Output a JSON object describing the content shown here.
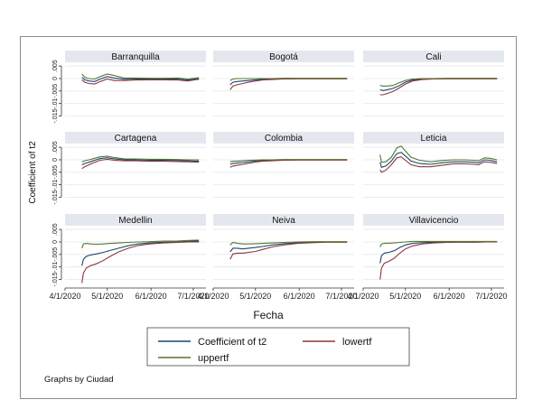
{
  "chart_data": {
    "type": "line",
    "ylabel": "Coefficient of t2",
    "xlabel": "Fecha",
    "yticks": [
      "-.015",
      "-.01",
      "-.005",
      "0",
      ".005"
    ],
    "xticks": [
      "4/1/2020",
      "5/1/2020",
      "6/1/2020",
      "7/1/2020"
    ],
    "x_days": [
      0,
      30,
      61,
      91
    ],
    "xlim": [
      0,
      100
    ],
    "ylim": [
      -0.017,
      0.0065
    ],
    "grid": true,
    "legend_position": "bottom",
    "footnote": "Graphs by Ciudad",
    "series_meta": [
      {
        "name": "Coefficient of t2",
        "color": "#1a476f"
      },
      {
        "name": "lowertf",
        "color": "#90353b"
      },
      {
        "name": "uppertf",
        "color": "#55752f"
      }
    ],
    "panels": [
      {
        "title": "Barranquilla",
        "x": [
          12,
          14,
          17,
          21,
          25,
          30,
          35,
          42,
          50,
          60,
          70,
          80,
          87,
          92,
          95
        ],
        "series": [
          [
            0.0005,
            -0.0005,
            -0.001,
            -0.0012,
            -0.0002,
            0.0008,
            0.0002,
            -0.0003,
            -0.0002,
            -0.0002,
            -0.0002,
            -0.0002,
            -0.0006,
            -0.0002,
            0.0
          ],
          [
            -0.0005,
            -0.0015,
            -0.002,
            -0.0022,
            -0.0012,
            -0.0002,
            -0.0008,
            -0.0008,
            -0.0006,
            -0.0005,
            -0.0005,
            -0.0006,
            -0.001,
            -0.0005,
            -0.0003
          ],
          [
            0.0018,
            0.0005,
            0.0,
            -0.0002,
            0.0008,
            0.0018,
            0.0012,
            0.0002,
            0.0002,
            0.0001,
            0.0001,
            0.0002,
            -0.0002,
            0.0001,
            0.0003
          ]
        ]
      },
      {
        "title": "Bogotá",
        "x": [
          12,
          14,
          17,
          21,
          25,
          30,
          35,
          42,
          50,
          60,
          70,
          80,
          87,
          92,
          95
        ],
        "series": [
          [
            -0.0025,
            -0.0015,
            -0.0012,
            -0.001,
            -0.0008,
            -0.0005,
            -0.0003,
            -0.0002,
            -0.0001,
            0.0,
            0.0,
            0.0,
            0.0,
            0.0,
            0.0
          ],
          [
            -0.0045,
            -0.003,
            -0.0025,
            -0.002,
            -0.0015,
            -0.001,
            -0.0006,
            -0.0004,
            -0.0002,
            -0.0001,
            -0.0001,
            -0.0001,
            -0.0001,
            -0.0001,
            -0.0001
          ],
          [
            -0.0008,
            -0.0002,
            0.0,
            0.0,
            0.0,
            0.0,
            0.0,
            0.0,
            0.0001,
            0.0001,
            0.0001,
            0.0001,
            0.0001,
            0.0001,
            0.0001
          ]
        ]
      },
      {
        "title": "Cali",
        "x": [
          12,
          14,
          17,
          21,
          25,
          30,
          35,
          42,
          50,
          60,
          70,
          80,
          87,
          92,
          95
        ],
        "series": [
          [
            -0.0045,
            -0.0048,
            -0.0045,
            -0.004,
            -0.003,
            -0.0015,
            -0.0006,
            -0.0002,
            -0.0001,
            0.0,
            0.0,
            0.0,
            0.0,
            0.0,
            0.0
          ],
          [
            -0.0065,
            -0.0065,
            -0.006,
            -0.0052,
            -0.004,
            -0.0022,
            -0.001,
            -0.0004,
            -0.0002,
            -0.0001,
            -0.0001,
            -0.0001,
            -0.0001,
            -0.0001,
            -0.0001
          ],
          [
            -0.0028,
            -0.003,
            -0.003,
            -0.0028,
            -0.0018,
            -0.0008,
            -0.0002,
            0.0,
            0.0,
            0.0001,
            0.0001,
            0.0001,
            0.0001,
            0.0001,
            0.0001
          ]
        ]
      },
      {
        "title": "Cartagena",
        "x": [
          12,
          14,
          17,
          21,
          25,
          30,
          35,
          42,
          50,
          60,
          70,
          80,
          87,
          92,
          95
        ],
        "series": [
          [
            -0.002,
            -0.0015,
            -0.001,
            -0.0002,
            0.0005,
            0.0008,
            0.0004,
            0.0,
            0.0,
            -0.0002,
            -0.0002,
            -0.0003,
            -0.0004,
            -0.0005,
            -0.0005
          ],
          [
            -0.0035,
            -0.0028,
            -0.002,
            -0.001,
            -0.0002,
            0.0002,
            -0.0002,
            -0.0004,
            -0.0004,
            -0.0006,
            -0.0006,
            -0.0007,
            -0.0008,
            -0.0009,
            -0.0009
          ],
          [
            -0.0008,
            -0.0004,
            0.0,
            0.0006,
            0.0012,
            0.0014,
            0.0009,
            0.0004,
            0.0003,
            0.0002,
            0.0002,
            0.0001,
            0.0,
            0.0,
            0.0
          ]
        ]
      },
      {
        "title": "Colombia",
        "x": [
          12,
          14,
          17,
          21,
          25,
          30,
          35,
          42,
          50,
          60,
          70,
          80,
          87,
          92,
          95
        ],
        "series": [
          [
            -0.0018,
            -0.0015,
            -0.0013,
            -0.0011,
            -0.0008,
            -0.0005,
            -0.0003,
            -0.0002,
            -0.0001,
            0.0,
            0.0,
            0.0,
            0.0,
            0.0,
            0.0
          ],
          [
            -0.003,
            -0.0025,
            -0.0022,
            -0.0018,
            -0.0014,
            -0.0009,
            -0.0006,
            -0.0004,
            -0.0002,
            -0.0001,
            -0.0001,
            -0.0001,
            -0.0001,
            -0.0001,
            -0.0001
          ],
          [
            -0.0008,
            -0.0006,
            -0.0005,
            -0.0004,
            -0.0002,
            -0.0001,
            0.0,
            0.0,
            0.0001,
            0.0001,
            0.0001,
            0.0001,
            0.0001,
            0.0001,
            0.0001
          ]
        ]
      },
      {
        "title": "Leticia",
        "x": [
          12,
          13,
          16,
          20,
          24,
          27,
          30,
          34,
          40,
          48,
          56,
          64,
          72,
          78,
          82,
          86,
          90,
          95
        ],
        "series": [
          [
            -0.001,
            -0.003,
            -0.0025,
            -0.0005,
            0.0025,
            0.003,
            0.0015,
            -0.0005,
            -0.0015,
            -0.0018,
            -0.0012,
            -0.0008,
            -0.0008,
            -0.001,
            -0.0012,
            0.0,
            -0.0002,
            -0.0008
          ],
          [
            -0.004,
            -0.005,
            -0.0042,
            -0.002,
            0.0008,
            0.0012,
            -0.0002,
            -0.002,
            -0.0028,
            -0.0028,
            -0.0022,
            -0.0016,
            -0.0016,
            -0.0018,
            -0.002,
            -0.0008,
            -0.001,
            -0.0015
          ],
          [
            0.002,
            -0.001,
            -0.0008,
            0.001,
            0.0048,
            0.0055,
            0.0035,
            0.001,
            -0.0002,
            -0.0008,
            -0.0003,
            0.0,
            0.0,
            -0.0002,
            -0.0004,
            0.0008,
            0.0006,
            0.0
          ]
        ]
      },
      {
        "title": "Medellin",
        "x": [
          12,
          13,
          15,
          18,
          22,
          27,
          32,
          38,
          45,
          52,
          60,
          70,
          80,
          88,
          92,
          95
        ],
        "series": [
          [
            -0.0095,
            -0.007,
            -0.0058,
            -0.0052,
            -0.0048,
            -0.0042,
            -0.0034,
            -0.0025,
            -0.0015,
            -0.0008,
            -0.0004,
            -0.0001,
            0.0,
            0.0003,
            0.0004,
            0.0004
          ],
          [
            -0.0165,
            -0.0125,
            -0.0105,
            -0.0095,
            -0.0088,
            -0.0075,
            -0.0058,
            -0.004,
            -0.0025,
            -0.0014,
            -0.0008,
            -0.0004,
            -0.0002,
            0.0,
            0.0,
            0.0
          ],
          [
            -0.0025,
            -0.0008,
            -0.0006,
            -0.0008,
            -0.0009,
            -0.0008,
            -0.0006,
            -0.0004,
            -0.0002,
            0.0,
            0.0001,
            0.0003,
            0.0004,
            0.0006,
            0.0007,
            0.0007
          ]
        ]
      },
      {
        "title": "Neiva",
        "x": [
          12,
          14,
          17,
          21,
          25,
          30,
          35,
          42,
          50,
          60,
          70,
          80,
          87,
          92,
          95
        ],
        "series": [
          [
            -0.004,
            -0.0025,
            -0.0025,
            -0.0028,
            -0.0025,
            -0.0022,
            -0.0018,
            -0.0012,
            -0.0007,
            -0.0003,
            -0.0001,
            0.0,
            0.0,
            0.0,
            0.0
          ],
          [
            -0.007,
            -0.0048,
            -0.0045,
            -0.0045,
            -0.0042,
            -0.0038,
            -0.003,
            -0.002,
            -0.0012,
            -0.0006,
            -0.0003,
            -0.0001,
            -0.0001,
            -0.0001,
            -0.0001
          ],
          [
            -0.0012,
            -0.0002,
            -0.0005,
            -0.0008,
            -0.0008,
            -0.0007,
            -0.0006,
            -0.0004,
            -0.0002,
            0.0,
            0.0001,
            0.0001,
            0.0001,
            0.0001,
            0.0001
          ]
        ]
      },
      {
        "title": "Villavicencio",
        "x": [
          12,
          13,
          15,
          18,
          22,
          26,
          30,
          35,
          42,
          50,
          60,
          70,
          80,
          88,
          92,
          95
        ],
        "series": [
          [
            -0.0085,
            -0.0055,
            -0.0045,
            -0.0042,
            -0.0035,
            -0.0022,
            -0.0012,
            -0.0006,
            -0.0003,
            -0.0001,
            0.0,
            0.0,
            0.0,
            0.0,
            0.0001,
            0.0001
          ],
          [
            -0.015,
            -0.0105,
            -0.0085,
            -0.0078,
            -0.0065,
            -0.0045,
            -0.0028,
            -0.0016,
            -0.0008,
            -0.0004,
            -0.0002,
            -0.0001,
            -0.0001,
            0.0,
            0.0,
            0.0
          ],
          [
            -0.002,
            -0.0008,
            -0.0005,
            -0.0005,
            -0.0004,
            -0.0002,
            0.0,
            0.0002,
            0.0002,
            0.0002,
            0.0002,
            0.0002,
            0.0002,
            0.0002,
            0.0002,
            0.0002
          ]
        ]
      }
    ]
  }
}
